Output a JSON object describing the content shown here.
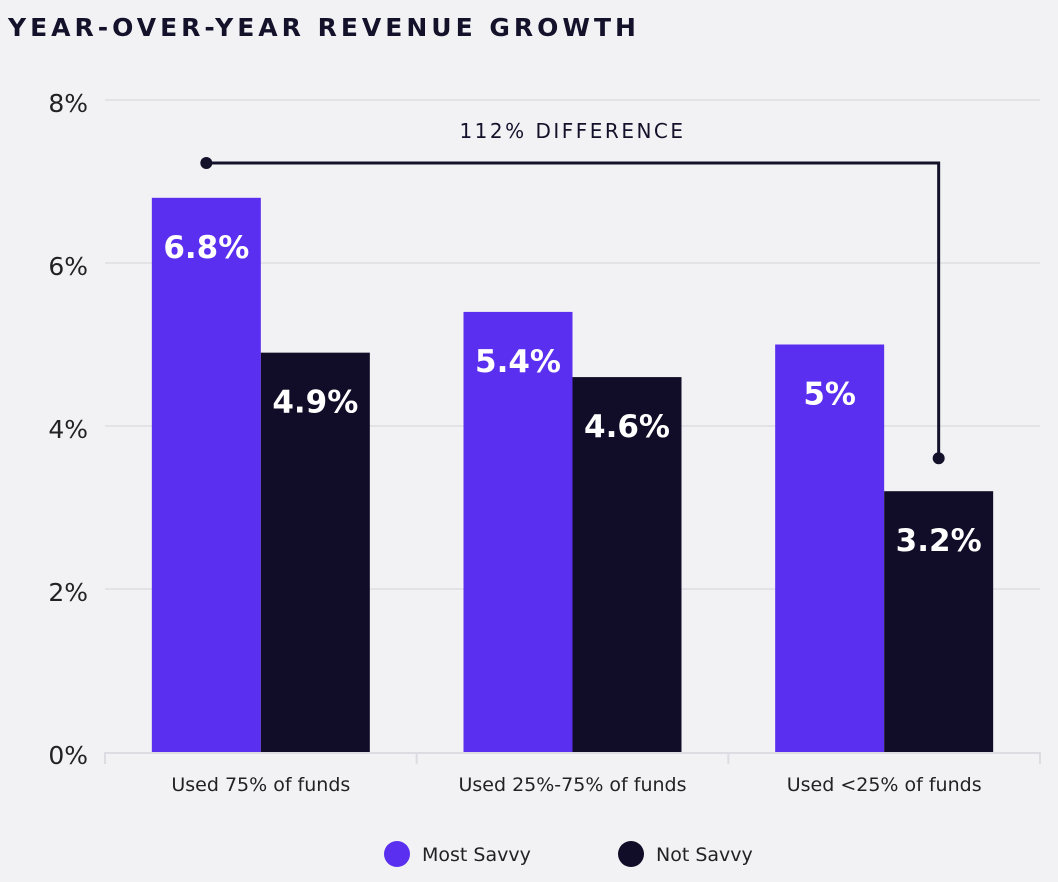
{
  "chart_data": {
    "type": "bar",
    "title": "YEAR-OVER-YEAR REVENUE GROWTH",
    "xlabel": "",
    "ylabel": "",
    "categories": [
      "Used 75% of funds",
      "Used 25%-75% of funds",
      "Used <25% of funds"
    ],
    "series": [
      {
        "name": "Most Savvy",
        "values": [
          6.8,
          5.4,
          5.0
        ],
        "labels": [
          "6.8%",
          "5.4%",
          "5%"
        ],
        "color": "#5a2ff0"
      },
      {
        "name": "Not Savvy",
        "values": [
          4.9,
          4.6,
          3.2
        ],
        "labels": [
          "4.9%",
          "4.6%",
          "3.2%"
        ],
        "color": "#110c27"
      }
    ],
    "ylim": [
      0,
      8
    ],
    "yticks": [
      0,
      2,
      4,
      6,
      8
    ],
    "ytick_labels": [
      "0%",
      "2%",
      "4%",
      "6%",
      "8%"
    ],
    "grid": true,
    "legend_position": "bottom",
    "annotation": {
      "text": "112% DIFFERENCE",
      "from": "Most Savvy / Used 75% of funds",
      "to": "Not Savvy / Used <25% of funds"
    }
  }
}
